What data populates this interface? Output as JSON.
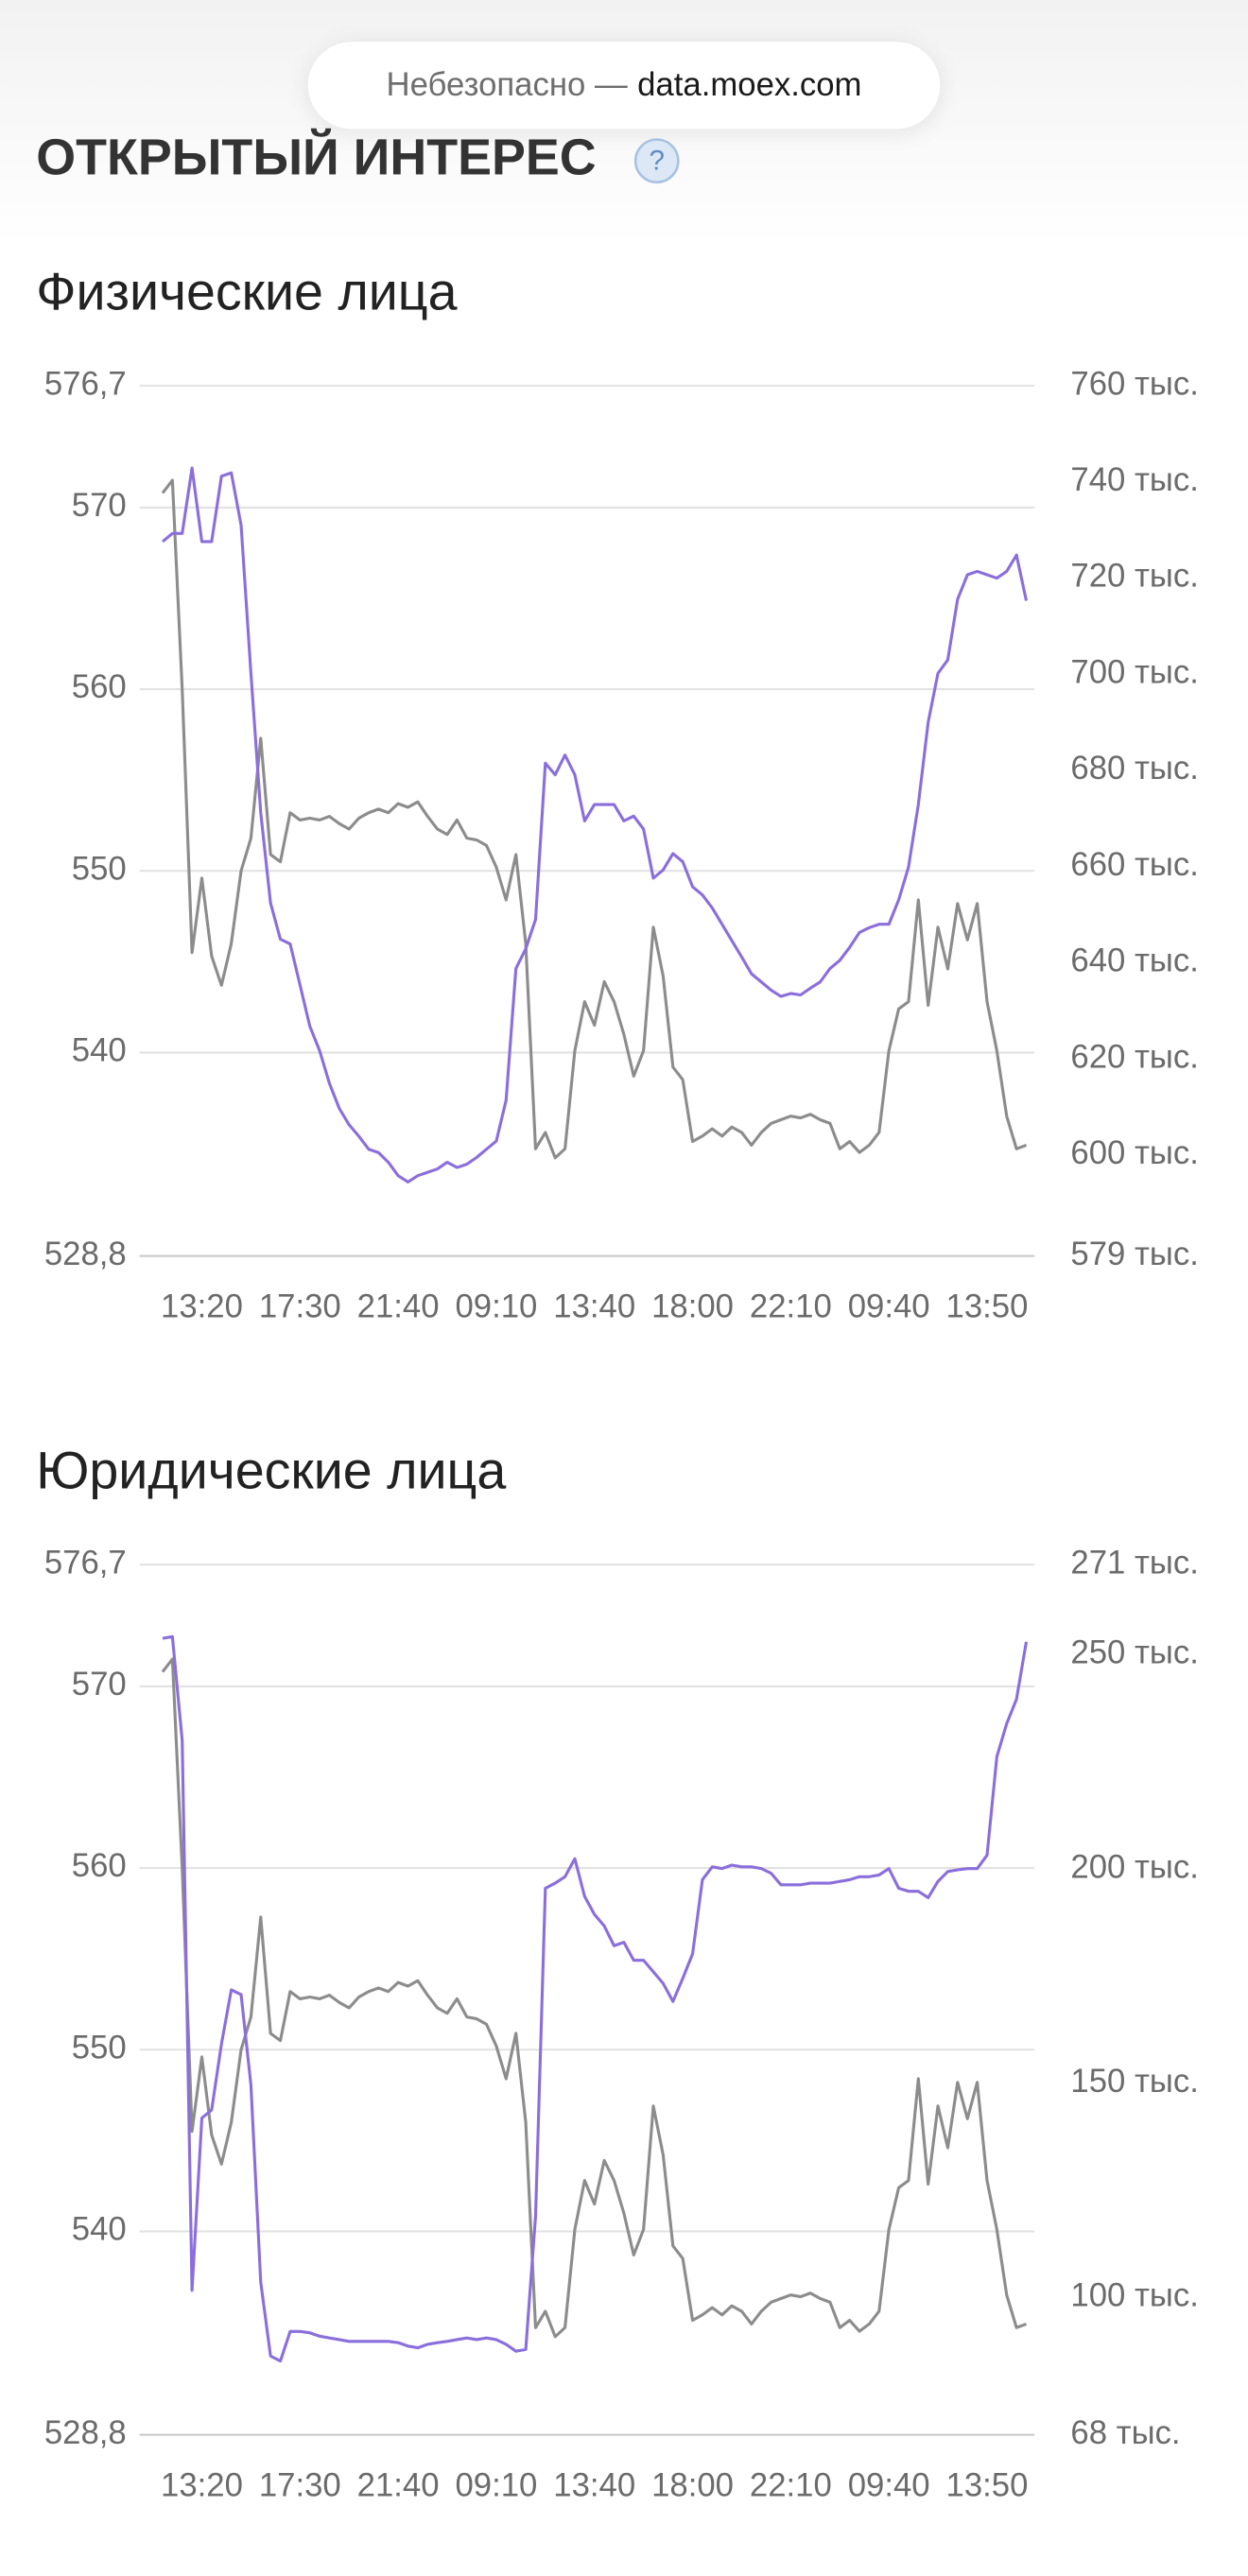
{
  "header": {
    "address_prefix": "Небезопасно —",
    "address_host": "data.moex.com",
    "title": "ОТКРЫТЫЙ ИНТЕРЕС",
    "help_icon": "?"
  },
  "chart_data": [
    {
      "type": "line",
      "title": "Физические лица",
      "categories": [
        null,
        null,
        null,
        null,
        "13:20",
        null,
        null,
        null,
        null,
        null,
        null,
        null,
        null,
        null,
        "17:30",
        null,
        null,
        null,
        null,
        null,
        null,
        null,
        null,
        null,
        "21:40",
        null,
        null,
        null,
        null,
        null,
        null,
        null,
        null,
        null,
        "09:10",
        null,
        null,
        null,
        null,
        null,
        null,
        null,
        null,
        null,
        "13:40",
        null,
        null,
        null,
        null,
        null,
        null,
        null,
        null,
        null,
        "18:00",
        null,
        null,
        null,
        null,
        null,
        null,
        null,
        null,
        null,
        "22:10",
        null,
        null,
        null,
        null,
        null,
        null,
        null,
        null,
        null,
        "09:40",
        null,
        null,
        null,
        null,
        null,
        null,
        null,
        null,
        null,
        "13:50",
        null,
        null,
        null,
        null
      ],
      "series": [
        {
          "color": "#8c8c8c",
          "values": [
            570.8,
            571.5,
            560.0,
            545.5,
            549.6,
            545.3,
            543.7,
            546.0,
            550.0,
            551.8,
            557.3,
            550.9,
            550.5,
            553.2,
            552.8,
            552.9,
            552.8,
            553.0,
            552.6,
            552.3,
            552.9,
            553.2,
            553.4,
            553.2,
            553.7,
            553.5,
            553.8,
            553.0,
            552.3,
            552.0,
            552.8,
            551.8,
            551.7,
            551.4,
            550.2,
            548.4,
            550.9,
            546.0,
            534.7,
            535.6,
            534.2,
            534.7,
            540.1,
            542.8,
            541.5,
            543.9,
            542.8,
            541.0,
            538.7,
            540.1,
            546.9,
            544.2,
            539.2,
            538.5,
            535.1,
            535.4,
            535.8,
            535.4,
            535.9,
            535.6,
            534.9,
            535.6,
            536.1,
            536.3,
            536.5,
            536.4,
            536.6,
            536.3,
            536.1,
            534.7,
            535.1,
            534.5,
            534.9,
            535.6,
            540.1,
            542.4,
            542.8,
            548.4,
            542.6,
            546.9,
            544.6,
            548.2,
            546.2,
            548.2,
            542.8,
            540.1,
            536.5,
            534.7,
            534.9
          ]
        },
        {
          "color": "#8a6fdc",
          "axis": "y2",
          "values": [
            727600,
            729300,
            729300,
            742900,
            727600,
            727600,
            741200,
            741900,
            731000,
            700200,
            671200,
            652400,
            644900,
            643900,
            635400,
            626800,
            621700,
            614900,
            609700,
            606300,
            603900,
            601200,
            600500,
            598500,
            595700,
            594400,
            595700,
            596400,
            597100,
            598500,
            597400,
            598100,
            599500,
            601200,
            602900,
            611400,
            638800,
            642900,
            649000,
            681500,
            679100,
            683200,
            679100,
            669500,
            672900,
            672900,
            672900,
            669500,
            670500,
            667800,
            657600,
            659300,
            662700,
            661000,
            655800,
            654100,
            651400,
            648000,
            644600,
            641200,
            637700,
            636000,
            634300,
            633000,
            633600,
            633300,
            634700,
            636000,
            638800,
            640500,
            643200,
            646300,
            647300,
            648000,
            648000,
            653100,
            659900,
            672900,
            690000,
            700200,
            703000,
            715600,
            720700,
            721400,
            720700,
            720000,
            721400,
            724800,
            715300
          ]
        }
      ],
      "ylim": [
        528.8,
        576.7
      ],
      "yticks": [
        {
          "value": 528.8,
          "label": "528,8"
        },
        540,
        550,
        560,
        570,
        {
          "value": 576.7,
          "label": "576,7"
        }
      ],
      "y2lim": [
        579000,
        760000
      ],
      "y2ticks": [
        {
          "value": 579000,
          "label": "579 тыс."
        },
        {
          "value": 600000,
          "label": "600 тыс."
        },
        {
          "value": 620000,
          "label": "620 тыс."
        },
        {
          "value": 640000,
          "label": "640 тыс."
        },
        {
          "value": 660000,
          "label": "660 тыс."
        },
        {
          "value": 680000,
          "label": "680 тыс."
        },
        {
          "value": 700000,
          "label": "700 тыс."
        },
        {
          "value": 720000,
          "label": "720 тыс."
        },
        {
          "value": 740000,
          "label": "740 тыс."
        },
        {
          "value": 760000,
          "label": "760 тыс."
        }
      ],
      "grid": true
    },
    {
      "type": "line",
      "title": "Юридические лица",
      "categories": [
        null,
        null,
        null,
        null,
        "13:20",
        null,
        null,
        null,
        null,
        null,
        null,
        null,
        null,
        null,
        "17:30",
        null,
        null,
        null,
        null,
        null,
        null,
        null,
        null,
        null,
        "21:40",
        null,
        null,
        null,
        null,
        null,
        null,
        null,
        null,
        null,
        "09:10",
        null,
        null,
        null,
        null,
        null,
        null,
        null,
        null,
        null,
        "13:40",
        null,
        null,
        null,
        null,
        null,
        null,
        null,
        null,
        null,
        "18:00",
        null,
        null,
        null,
        null,
        null,
        null,
        null,
        null,
        null,
        "22:10",
        null,
        null,
        null,
        null,
        null,
        null,
        null,
        null,
        null,
        "09:40",
        null,
        null,
        null,
        null,
        null,
        null,
        null,
        null,
        null,
        "13:50",
        null,
        null,
        null,
        null
      ],
      "series": [
        {
          "color": "#8c8c8c",
          "values": [
            570.8,
            571.5,
            560.0,
            545.5,
            549.6,
            545.3,
            543.7,
            546.0,
            550.0,
            551.8,
            557.3,
            550.9,
            550.5,
            553.2,
            552.8,
            552.9,
            552.8,
            553.0,
            552.6,
            552.3,
            552.9,
            553.2,
            553.4,
            553.2,
            553.7,
            553.5,
            553.8,
            553.0,
            552.3,
            552.0,
            552.8,
            551.8,
            551.7,
            551.4,
            550.2,
            548.4,
            550.9,
            546.0,
            534.7,
            535.6,
            534.2,
            534.7,
            540.1,
            542.8,
            541.5,
            543.9,
            542.8,
            541.0,
            538.7,
            540.1,
            546.9,
            544.2,
            539.2,
            538.5,
            535.1,
            535.4,
            535.8,
            535.4,
            535.9,
            535.6,
            534.9,
            535.6,
            536.1,
            536.3,
            536.5,
            536.4,
            536.6,
            536.3,
            536.1,
            534.7,
            535.1,
            534.5,
            534.9,
            535.6,
            540.1,
            542.4,
            542.8,
            548.4,
            542.6,
            546.9,
            544.6,
            548.2,
            546.2,
            548.2,
            542.8,
            540.1,
            536.5,
            534.7,
            534.9
          ]
        },
        {
          "color": "#8a6fdc",
          "axis": "y2",
          "values": [
            253800,
            254200,
            230000,
            101700,
            141900,
            143800,
            159200,
            171800,
            170700,
            149600,
            103600,
            86400,
            85200,
            92100,
            92100,
            91800,
            91000,
            90600,
            90200,
            89800,
            89800,
            89800,
            89800,
            89800,
            89500,
            88700,
            88300,
            89100,
            89500,
            89800,
            90200,
            90600,
            90200,
            90600,
            90200,
            89100,
            87500,
            87900,
            119000,
            195500,
            196700,
            198200,
            202400,
            193600,
            189400,
            186700,
            182100,
            182900,
            178700,
            178700,
            176000,
            173300,
            169100,
            174500,
            180200,
            197500,
            200500,
            200100,
            200900,
            200500,
            200500,
            200100,
            199000,
            196300,
            196300,
            196300,
            196700,
            196700,
            196700,
            197100,
            197500,
            198200,
            198200,
            198600,
            200100,
            195500,
            194800,
            194800,
            193300,
            197100,
            199400,
            199800,
            200100,
            200100,
            203200,
            226200,
            233900,
            239600,
            253000
          ]
        }
      ],
      "ylim": [
        528.8,
        576.7
      ],
      "yticks": [
        {
          "value": 528.8,
          "label": "528,8"
        },
        540,
        550,
        560,
        570,
        {
          "value": 576.7,
          "label": "576,7"
        }
      ],
      "y2lim": [
        68000,
        271000
      ],
      "y2ticks": [
        {
          "value": 68000,
          "label": "68 тыс."
        },
        {
          "value": 100000,
          "label": "100 тыс."
        },
        {
          "value": 150000,
          "label": "150 тыс."
        },
        {
          "value": 200000,
          "label": "200 тыс."
        },
        {
          "value": 250000,
          "label": "250 тыс."
        },
        {
          "value": 271000,
          "label": "271 тыс."
        }
      ],
      "grid": true
    }
  ]
}
